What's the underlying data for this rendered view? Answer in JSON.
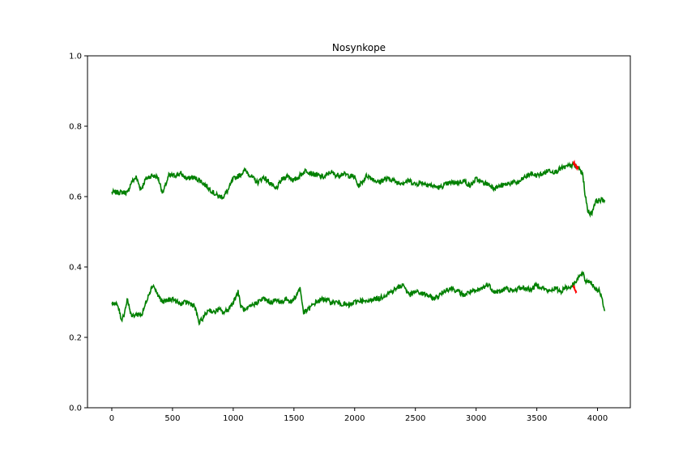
{
  "chart_data": {
    "type": "line",
    "title": "Nosynkope",
    "xlabel": "",
    "ylabel": "",
    "xlim": [
      -200,
      4270
    ],
    "ylim": [
      0.0,
      1.0
    ],
    "x_ticks": [
      0,
      500,
      1000,
      1500,
      2000,
      2500,
      3000,
      3500,
      4000
    ],
    "x_tick_labels": [
      "0",
      "500",
      "1000",
      "1500",
      "2000",
      "2500",
      "3000",
      "3500",
      "4000"
    ],
    "y_ticks": [
      0.0,
      0.2,
      0.4,
      0.6,
      0.8,
      1.0
    ],
    "y_tick_labels": [
      "0.0",
      "0.2",
      "0.4",
      "0.6",
      "0.8",
      "1.0"
    ],
    "grid": false,
    "colors": {
      "series": "#008000",
      "highlight": "#ff0000"
    },
    "series": [
      {
        "color": "#008000",
        "x": [
          0,
          120,
          130,
          160,
          200,
          240,
          280,
          330,
          380,
          420,
          470,
          520,
          570,
          620,
          660,
          720,
          780,
          840,
          880,
          920,
          960,
          1000,
          1050,
          1100,
          1140,
          1200,
          1250,
          1300,
          1350,
          1400,
          1450,
          1500,
          1550,
          1600,
          1650,
          1700,
          1750,
          1800,
          1850,
          1900,
          1950,
          2000,
          2030,
          2060,
          2100,
          2150,
          2200,
          2250,
          2300,
          2350,
          2400,
          2450,
          2500,
          2550,
          2600,
          2650,
          2700,
          2750,
          2800,
          2850,
          2900,
          2950,
          3000,
          3050,
          3100,
          3150,
          3200,
          3250,
          3300,
          3350,
          3400,
          3450,
          3500,
          3550,
          3600,
          3650,
          3700,
          3750,
          3800,
          3850,
          3880,
          3900,
          3920,
          3950,
          3980,
          4020,
          4060
        ],
        "y": [
          0.612,
          0.612,
          0.61,
          0.64,
          0.655,
          0.62,
          0.65,
          0.66,
          0.655,
          0.61,
          0.66,
          0.66,
          0.665,
          0.65,
          0.655,
          0.648,
          0.63,
          0.61,
          0.6,
          0.6,
          0.62,
          0.65,
          0.66,
          0.675,
          0.66,
          0.64,
          0.655,
          0.64,
          0.62,
          0.648,
          0.66,
          0.645,
          0.66,
          0.675,
          0.665,
          0.66,
          0.655,
          0.67,
          0.66,
          0.665,
          0.66,
          0.655,
          0.63,
          0.64,
          0.66,
          0.65,
          0.64,
          0.65,
          0.65,
          0.64,
          0.64,
          0.645,
          0.635,
          0.64,
          0.635,
          0.63,
          0.625,
          0.635,
          0.64,
          0.64,
          0.645,
          0.63,
          0.65,
          0.64,
          0.635,
          0.625,
          0.63,
          0.635,
          0.64,
          0.64,
          0.655,
          0.665,
          0.66,
          0.665,
          0.675,
          0.67,
          0.68,
          0.685,
          0.69,
          0.68,
          0.66,
          0.6,
          0.56,
          0.55,
          0.585,
          0.59,
          0.59
        ]
      },
      {
        "color": "#008000",
        "x": [
          0,
          50,
          80,
          100,
          130,
          160,
          200,
          250,
          300,
          340,
          380,
          420,
          460,
          500,
          560,
          620,
          680,
          720,
          760,
          800,
          840,
          880,
          920,
          960,
          1000,
          1040,
          1060,
          1100,
          1150,
          1200,
          1250,
          1300,
          1350,
          1400,
          1440,
          1480,
          1520,
          1550,
          1580,
          1620,
          1680,
          1750,
          1800,
          1850,
          1900,
          1950,
          2000,
          2050,
          2100,
          2150,
          2200,
          2250,
          2300,
          2350,
          2400,
          2450,
          2500,
          2550,
          2600,
          2650,
          2700,
          2750,
          2800,
          2850,
          2900,
          2950,
          3000,
          3050,
          3100,
          3150,
          3200,
          3250,
          3300,
          3350,
          3400,
          3450,
          3500,
          3550,
          3600,
          3650,
          3700,
          3740,
          3760,
          3800,
          3840,
          3880,
          3900,
          3940,
          3980,
          4020,
          4060
        ],
        "y": [
          0.3,
          0.29,
          0.25,
          0.265,
          0.31,
          0.26,
          0.265,
          0.265,
          0.32,
          0.35,
          0.32,
          0.3,
          0.305,
          0.31,
          0.295,
          0.3,
          0.29,
          0.24,
          0.26,
          0.28,
          0.27,
          0.28,
          0.27,
          0.28,
          0.3,
          0.33,
          0.29,
          0.275,
          0.29,
          0.3,
          0.31,
          0.3,
          0.305,
          0.3,
          0.31,
          0.3,
          0.32,
          0.34,
          0.27,
          0.28,
          0.3,
          0.31,
          0.3,
          0.3,
          0.295,
          0.29,
          0.3,
          0.305,
          0.3,
          0.31,
          0.31,
          0.32,
          0.33,
          0.34,
          0.35,
          0.32,
          0.33,
          0.325,
          0.32,
          0.31,
          0.32,
          0.335,
          0.34,
          0.33,
          0.32,
          0.33,
          0.33,
          0.34,
          0.35,
          0.33,
          0.33,
          0.34,
          0.33,
          0.34,
          0.34,
          0.335,
          0.35,
          0.34,
          0.33,
          0.34,
          0.33,
          0.345,
          0.34,
          0.35,
          0.37,
          0.38,
          0.36,
          0.36,
          0.34,
          0.33,
          0.275
        ]
      }
    ],
    "highlights": [
      {
        "color": "#ff0000",
        "x": [
          3800,
          3815,
          3830,
          3845
        ],
        "y": [
          0.695,
          0.69,
          0.685,
          0.68
        ]
      },
      {
        "color": "#ff0000",
        "x": [
          3800,
          3815,
          3830
        ],
        "y": [
          0.345,
          0.335,
          0.33
        ]
      }
    ]
  }
}
